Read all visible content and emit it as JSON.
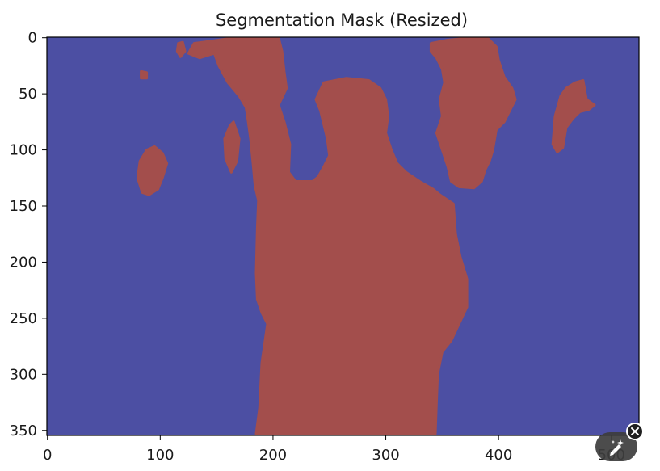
{
  "chart_data": {
    "type": "heatmap",
    "title": "Segmentation Mask (Resized)",
    "xlabel": "",
    "ylabel": "",
    "xlim": [
      -0.5,
      524.5
    ],
    "ylim": [
      354.5,
      -0.5
    ],
    "y_inverted": true,
    "x_ticks": [
      0,
      100,
      200,
      300,
      400,
      500
    ],
    "y_ticks": [
      0,
      50,
      100,
      150,
      200,
      250,
      300,
      350
    ],
    "grid": false,
    "classes": [
      {
        "value": 0,
        "color": "#4c4fa3"
      },
      {
        "value": 1,
        "color": "#a34e4c"
      }
    ],
    "regions": [
      {
        "class": 1,
        "polygon": [
          [
            185,
            353
          ],
          [
            188,
            330
          ],
          [
            190,
            290
          ],
          [
            195,
            255
          ],
          [
            190,
            245
          ],
          [
            186,
            233
          ],
          [
            185,
            210
          ],
          [
            186,
            170
          ],
          [
            187,
            145
          ],
          [
            184,
            132
          ],
          [
            182,
            110
          ],
          [
            180,
            90
          ],
          [
            178,
            75
          ],
          [
            176,
            62
          ],
          [
            170,
            52
          ],
          [
            160,
            40
          ],
          [
            152,
            25
          ],
          [
            148,
            14
          ],
          [
            135,
            18
          ],
          [
            125,
            14
          ],
          [
            130,
            5
          ],
          [
            145,
            3
          ],
          [
            165,
            0
          ],
          [
            190,
            0
          ],
          [
            205,
            0
          ],
          [
            208,
            12
          ],
          [
            210,
            30
          ],
          [
            212,
            45
          ],
          [
            205,
            60
          ],
          [
            210,
            75
          ],
          [
            215,
            95
          ],
          [
            214,
            120
          ],
          [
            220,
            128
          ],
          [
            235,
            128
          ],
          [
            240,
            124
          ],
          [
            245,
            115
          ],
          [
            250,
            105
          ],
          [
            248,
            90
          ],
          [
            242,
            65
          ],
          [
            238,
            55
          ],
          [
            245,
            40
          ],
          [
            265,
            36
          ],
          [
            285,
            38
          ],
          [
            295,
            45
          ],
          [
            300,
            55
          ],
          [
            302,
            70
          ],
          [
            300,
            85
          ],
          [
            305,
            100
          ],
          [
            310,
            112
          ],
          [
            318,
            120
          ],
          [
            330,
            128
          ],
          [
            342,
            135
          ],
          [
            348,
            140
          ],
          [
            360,
            148
          ],
          [
            362,
            175
          ],
          [
            366,
            195
          ],
          [
            372,
            215
          ],
          [
            372,
            240
          ],
          [
            365,
            255
          ],
          [
            358,
            270
          ],
          [
            350,
            280
          ],
          [
            346,
            300
          ],
          [
            345,
            325
          ],
          [
            344,
            353
          ]
        ]
      },
      {
        "class": 1,
        "polygon": [
          [
            340,
            5
          ],
          [
            355,
            2
          ],
          [
            375,
            0
          ],
          [
            390,
            0
          ],
          [
            398,
            8
          ],
          [
            400,
            20
          ],
          [
            405,
            35
          ],
          [
            412,
            45
          ],
          [
            415,
            55
          ],
          [
            410,
            65
          ],
          [
            405,
            75
          ],
          [
            398,
            82
          ],
          [
            395,
            100
          ],
          [
            392,
            110
          ],
          [
            388,
            118
          ],
          [
            385,
            128
          ],
          [
            378,
            134
          ],
          [
            365,
            133
          ],
          [
            358,
            128
          ],
          [
            355,
            115
          ],
          [
            350,
            100
          ],
          [
            345,
            85
          ],
          [
            350,
            70
          ],
          [
            348,
            55
          ],
          [
            352,
            40
          ],
          [
            350,
            28
          ],
          [
            345,
            18
          ],
          [
            340,
            12
          ]
        ]
      },
      {
        "class": 1,
        "polygon": [
          [
            165,
            75
          ],
          [
            170,
            90
          ],
          [
            168,
            110
          ],
          [
            163,
            120
          ],
          [
            158,
            108
          ],
          [
            157,
            90
          ],
          [
            162,
            78
          ]
        ]
      },
      {
        "class": 1,
        "polygon": [
          [
            88,
            100
          ],
          [
            95,
            97
          ],
          [
            102,
            103
          ],
          [
            106,
            112
          ],
          [
            102,
            125
          ],
          [
            98,
            135
          ],
          [
            90,
            140
          ],
          [
            84,
            138
          ],
          [
            80,
            125
          ],
          [
            82,
            110
          ]
        ]
      },
      {
        "class": 1,
        "polygon": [
          [
            468,
            40
          ],
          [
            475,
            38
          ],
          [
            478,
            55
          ],
          [
            485,
            60
          ],
          [
            480,
            64
          ],
          [
            472,
            66
          ],
          [
            466,
            72
          ],
          [
            460,
            80
          ],
          [
            457,
            98
          ],
          [
            452,
            102
          ],
          [
            448,
            95
          ],
          [
            450,
            70
          ],
          [
            455,
            52
          ],
          [
            460,
            45
          ]
        ]
      },
      {
        "class": 1,
        "polygon": [
          [
            116,
            5
          ],
          [
            120,
            4
          ],
          [
            122,
            12
          ],
          [
            118,
            17
          ],
          [
            115,
            12
          ]
        ]
      },
      {
        "class": 1,
        "polygon": [
          [
            83,
            30
          ],
          [
            88,
            31
          ],
          [
            88,
            36
          ],
          [
            83,
            36
          ]
        ]
      }
    ]
  },
  "overlay": {
    "edit_icon": "pencil-sparkle-icon",
    "close_icon": "close-icon"
  }
}
